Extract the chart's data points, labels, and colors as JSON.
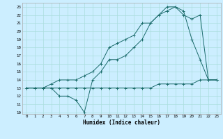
{
  "xlabel": "Humidex (Indice chaleur)",
  "bg_color": "#cceeff",
  "grid_color": "#aadddd",
  "line_color": "#1a6b6b",
  "xlim": [
    -0.5,
    23.5
  ],
  "ylim": [
    9.8,
    23.5
  ],
  "yticks": [
    10,
    11,
    12,
    13,
    14,
    15,
    16,
    17,
    18,
    19,
    20,
    21,
    22,
    23
  ],
  "xticks": [
    0,
    1,
    2,
    3,
    4,
    5,
    6,
    7,
    8,
    9,
    10,
    11,
    12,
    13,
    14,
    15,
    16,
    17,
    18,
    19,
    20,
    21,
    22,
    23
  ],
  "line1_x": [
    0,
    1,
    2,
    3,
    4,
    5,
    6,
    7,
    8,
    9,
    10,
    11,
    12,
    13,
    14,
    15,
    16,
    17,
    18,
    19,
    20,
    21,
    22,
    23
  ],
  "line1_y": [
    13,
    13,
    13,
    13,
    13,
    13,
    13,
    13,
    13,
    13,
    13,
    13,
    13,
    13,
    13,
    13,
    13.5,
    13.5,
    13.5,
    13.5,
    13.5,
    14,
    14,
    14
  ],
  "line2_x": [
    0,
    1,
    2,
    3,
    4,
    5,
    6,
    7,
    8,
    9,
    10,
    11,
    12,
    13,
    14,
    15,
    16,
    17,
    18,
    19,
    20,
    21,
    22,
    23
  ],
  "line2_y": [
    13,
    13,
    13,
    13,
    12,
    12,
    11.5,
    10,
    14,
    15,
    16.5,
    16.5,
    17,
    18,
    19,
    21,
    22,
    23,
    23,
    22.5,
    19,
    16.5,
    14,
    14
  ],
  "line3_x": [
    0,
    1,
    2,
    3,
    4,
    5,
    6,
    7,
    8,
    9,
    10,
    11,
    12,
    13,
    14,
    15,
    16,
    17,
    18,
    19,
    20,
    21,
    22,
    23
  ],
  "line3_y": [
    13,
    13,
    13,
    13.5,
    14,
    14,
    14,
    14.5,
    15,
    16,
    18,
    18.5,
    19,
    19.5,
    21,
    21,
    22,
    22.5,
    23,
    22,
    21.5,
    22,
    14,
    14
  ]
}
